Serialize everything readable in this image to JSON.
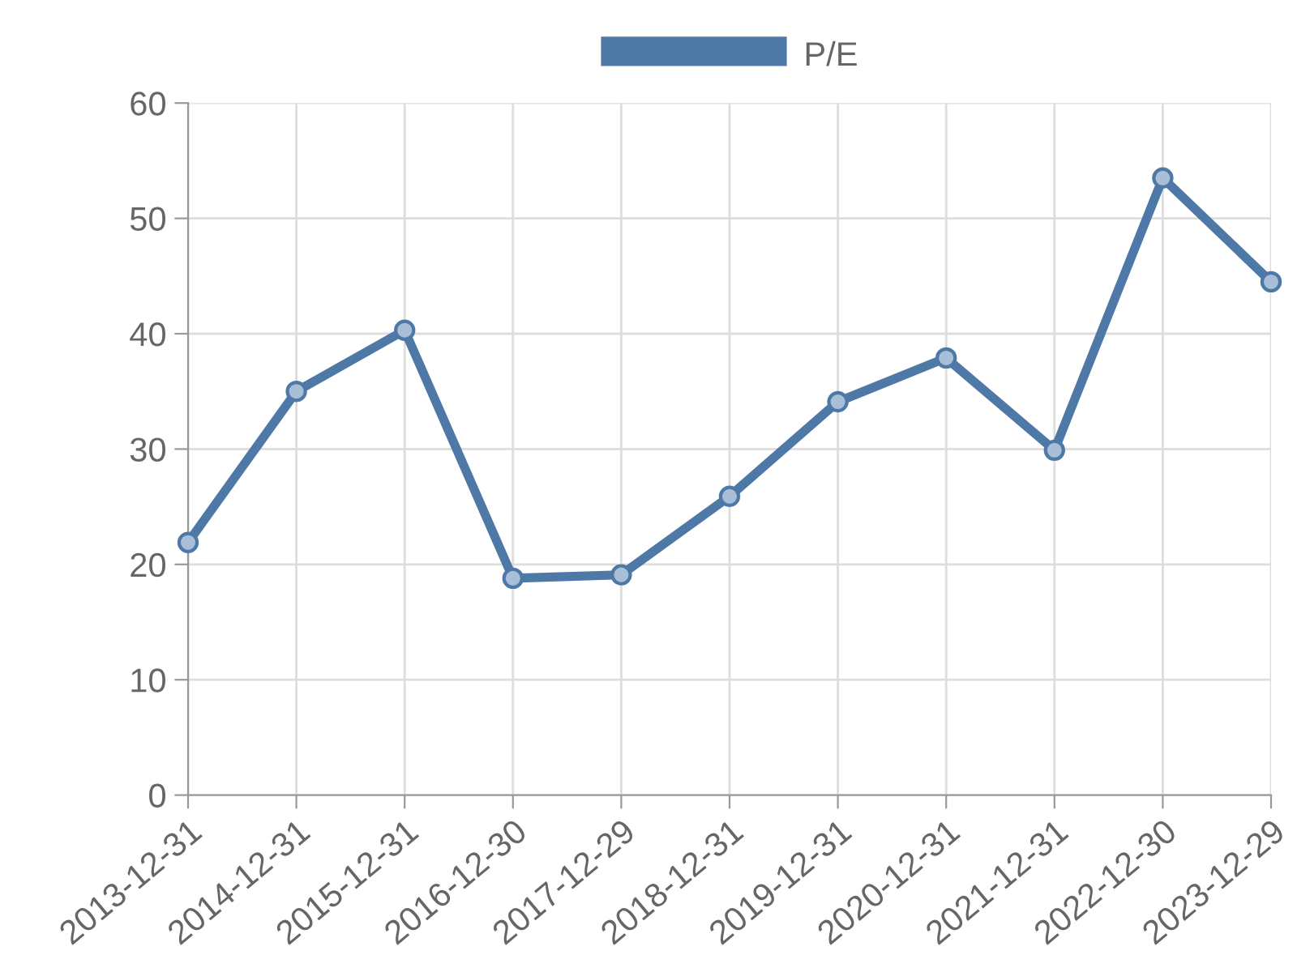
{
  "chart_data": {
    "type": "line",
    "categories": [
      "2013-12-31",
      "2014-12-31",
      "2015-12-31",
      "2016-12-30",
      "2017-12-29",
      "2018-12-31",
      "2019-12-31",
      "2020-12-31",
      "2021-12-31",
      "2022-12-30",
      "2023-12-29"
    ],
    "series": [
      {
        "name": "P/E",
        "color": "#4e79a7",
        "values": [
          21.9,
          35.0,
          40.3,
          18.8,
          19.1,
          25.9,
          34.1,
          37.9,
          29.9,
          53.5,
          44.5
        ]
      }
    ],
    "ylim": [
      0,
      60
    ],
    "yticks": [
      0,
      10,
      20,
      30,
      40,
      50,
      60
    ],
    "grid": true,
    "legend": "top",
    "marker": "circle",
    "line_style": "solid"
  }
}
